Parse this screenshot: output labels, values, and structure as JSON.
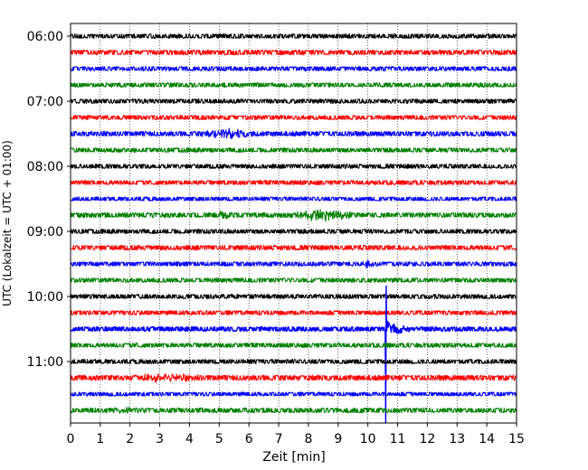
{
  "chart_data": {
    "type": "line",
    "title": "",
    "xlabel": "Zeit  [min]",
    "ylabel": "UTC (Lokalzeit = UTC + 01:00)",
    "xlim": [
      0,
      15
    ],
    "xticks": [
      0,
      1,
      2,
      3,
      4,
      5,
      6,
      7,
      8,
      9,
      10,
      11,
      12,
      13,
      14,
      15
    ],
    "ytick_labels": [
      "06:00",
      "07:00",
      "08:00",
      "09:00",
      "10:00",
      "11:00"
    ],
    "grid": "vertical dotted",
    "trace_interval_min": 15,
    "start_time": "06:00",
    "color_cycle": [
      "#000000",
      "#ff0000",
      "#0000ff",
      "#008000"
    ],
    "rows": [
      {
        "time": "06:00",
        "color": "#000000",
        "amplitude": 0.2
      },
      {
        "time": "06:15",
        "color": "#ff0000",
        "amplitude": 0.22
      },
      {
        "time": "06:30",
        "color": "#0000ff",
        "amplitude": 0.2
      },
      {
        "time": "06:45",
        "color": "#008000",
        "amplitude": 0.2
      },
      {
        "time": "07:00",
        "color": "#000000",
        "amplitude": 0.2
      },
      {
        "time": "07:15",
        "color": "#ff0000",
        "amplitude": 0.2
      },
      {
        "time": "07:30",
        "color": "#0000ff",
        "amplitude": 0.22,
        "bursts": [
          {
            "center": 5.3,
            "width": 1.2,
            "amp": 0.3
          }
        ]
      },
      {
        "time": "07:45",
        "color": "#008000",
        "amplitude": 0.2
      },
      {
        "time": "08:00",
        "color": "#000000",
        "amplitude": 0.2
      },
      {
        "time": "08:15",
        "color": "#ff0000",
        "amplitude": 0.2
      },
      {
        "time": "08:30",
        "color": "#0000ff",
        "amplitude": 0.18
      },
      {
        "time": "08:45",
        "color": "#008000",
        "amplitude": 0.22,
        "bursts": [
          {
            "center": 8.5,
            "width": 1.6,
            "amp": 0.32
          },
          {
            "center": 5.2,
            "width": 0.4,
            "amp": 0.2
          }
        ]
      },
      {
        "time": "09:00",
        "color": "#000000",
        "amplitude": 0.2
      },
      {
        "time": "09:15",
        "color": "#ff0000",
        "amplitude": 0.22
      },
      {
        "time": "09:30",
        "color": "#0000ff",
        "amplitude": 0.2,
        "bursts": [
          {
            "center": 10.0,
            "width": 0.3,
            "amp": 0.25
          }
        ]
      },
      {
        "time": "09:45",
        "color": "#008000",
        "amplitude": 0.2
      },
      {
        "time": "10:00",
        "color": "#000000",
        "amplitude": 0.2
      },
      {
        "time": "10:15",
        "color": "#ff0000",
        "amplitude": 0.2
      },
      {
        "time": "10:30",
        "color": "#0000ff",
        "amplitude": 0.2,
        "event": {
          "start": 10.6,
          "spike_up": 13.0,
          "spike_down": 5.8,
          "coda": 1.2,
          "decay": 0.35
        }
      },
      {
        "time": "10:45",
        "color": "#008000",
        "amplitude": 0.2
      },
      {
        "time": "11:00",
        "color": "#000000",
        "amplitude": 0.2
      },
      {
        "time": "11:15",
        "color": "#ff0000",
        "amplitude": 0.24,
        "bursts": [
          {
            "center": 3.2,
            "width": 1.8,
            "amp": 0.2
          }
        ]
      },
      {
        "time": "11:30",
        "color": "#0000ff",
        "amplitude": 0.18
      },
      {
        "time": "11:45",
        "color": "#008000",
        "amplitude": 0.22,
        "bursts": [
          {
            "center": 1.8,
            "width": 0.6,
            "amp": 0.15
          }
        ]
      }
    ]
  }
}
